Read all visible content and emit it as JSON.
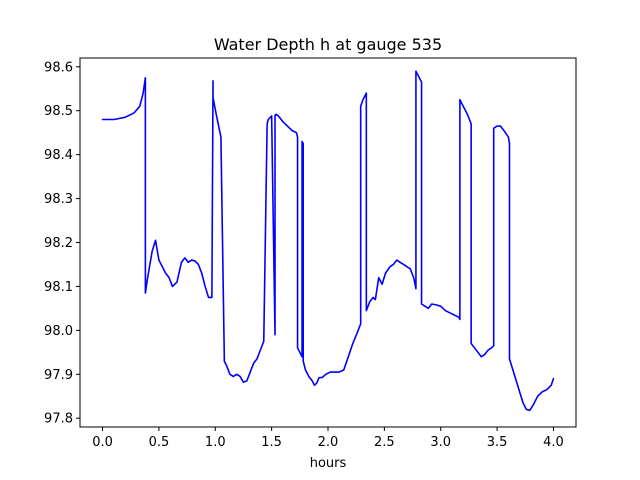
{
  "chart_data": {
    "type": "line",
    "title": "Water Depth h at gauge 535",
    "xlabel": "hours",
    "ylabel": "",
    "xlim": [
      -0.2,
      4.2
    ],
    "ylim": [
      97.78,
      98.62
    ],
    "xticks": [
      0.0,
      0.5,
      1.0,
      1.5,
      2.0,
      2.5,
      3.0,
      3.5,
      4.0
    ],
    "xtick_labels": [
      "0.0",
      "0.5",
      "1.0",
      "1.5",
      "2.0",
      "2.5",
      "3.0",
      "3.5",
      "4.0"
    ],
    "yticks": [
      97.8,
      97.9,
      98.0,
      98.1,
      98.2,
      98.3,
      98.4,
      98.5,
      98.6
    ],
    "ytick_labels": [
      "97.8",
      "97.9",
      "98.0",
      "98.1",
      "98.2",
      "98.3",
      "98.4",
      "98.5",
      "98.6"
    ],
    "grid": false,
    "legend": "none",
    "series": [
      {
        "color": "#0000ff",
        "x": [
          0.0,
          0.1,
          0.2,
          0.28,
          0.33,
          0.36,
          0.38,
          0.38,
          0.4,
          0.44,
          0.47,
          0.5,
          0.53,
          0.56,
          0.59,
          0.62,
          0.66,
          0.7,
          0.73,
          0.76,
          0.79,
          0.82,
          0.85,
          0.88,
          0.91,
          0.94,
          0.97,
          0.98,
          0.98,
          1.01,
          1.05,
          1.08,
          1.08,
          1.1,
          1.13,
          1.16,
          1.19,
          1.22,
          1.25,
          1.28,
          1.31,
          1.34,
          1.37,
          1.4,
          1.43,
          1.46,
          1.47,
          1.47,
          1.5,
          1.53,
          1.53,
          1.54,
          1.54,
          1.55,
          1.56,
          1.6,
          1.64,
          1.68,
          1.72,
          1.73,
          1.73,
          1.75,
          1.77,
          1.77,
          1.78,
          1.78,
          1.8,
          1.83,
          1.86,
          1.88,
          1.9,
          1.92,
          1.95,
          1.98,
          2.02,
          2.06,
          2.1,
          2.14,
          2.18,
          2.22,
          2.26,
          2.29,
          2.29,
          2.31,
          2.34,
          2.34,
          2.37,
          2.4,
          2.42,
          2.45,
          2.48,
          2.51,
          2.55,
          2.58,
          2.61,
          2.64,
          2.67,
          2.7,
          2.73,
          2.76,
          2.78,
          2.78,
          2.8,
          2.83,
          2.83,
          2.86,
          2.89,
          2.92,
          2.96,
          3.0,
          3.04,
          3.08,
          3.12,
          3.16,
          3.17,
          3.17,
          3.2,
          3.24,
          3.27,
          3.27,
          3.3,
          3.33,
          3.36,
          3.39,
          3.42,
          3.45,
          3.47,
          3.47,
          3.5,
          3.53,
          3.56,
          3.6,
          3.61,
          3.61,
          3.64,
          3.67,
          3.7,
          3.73,
          3.76,
          3.79,
          3.82,
          3.86,
          3.9,
          3.94,
          3.98,
          4.0
        ],
        "y": [
          98.48,
          98.48,
          98.485,
          98.495,
          98.51,
          98.54,
          98.575,
          98.085,
          98.12,
          98.18,
          98.205,
          98.16,
          98.145,
          98.13,
          98.12,
          98.1,
          98.11,
          98.155,
          98.165,
          98.155,
          98.16,
          98.158,
          98.15,
          98.13,
          98.1,
          98.075,
          98.075,
          98.568,
          98.53,
          98.49,
          98.44,
          97.94,
          97.93,
          97.92,
          97.9,
          97.895,
          97.9,
          97.895,
          97.882,
          97.885,
          97.905,
          97.925,
          97.935,
          97.955,
          97.975,
          98.47,
          98.48,
          98.48,
          98.488,
          97.99,
          98.49,
          98.49,
          98.492,
          98.49,
          98.488,
          98.475,
          98.465,
          98.455,
          98.45,
          98.44,
          97.96,
          97.95,
          97.94,
          98.43,
          98.425,
          97.93,
          97.91,
          97.895,
          97.885,
          97.875,
          97.88,
          97.892,
          97.893,
          97.9,
          97.905,
          97.905,
          97.905,
          97.91,
          97.94,
          97.97,
          97.995,
          98.015,
          98.51,
          98.525,
          98.54,
          98.045,
          98.065,
          98.075,
          98.07,
          98.12,
          98.105,
          98.13,
          98.145,
          98.15,
          98.16,
          98.155,
          98.15,
          98.145,
          98.14,
          98.12,
          98.095,
          98.59,
          98.58,
          98.565,
          98.06,
          98.055,
          98.05,
          98.06,
          98.058,
          98.055,
          98.045,
          98.04,
          98.035,
          98.03,
          98.025,
          98.525,
          98.51,
          98.49,
          98.47,
          97.97,
          97.96,
          97.95,
          97.94,
          97.945,
          97.955,
          97.96,
          97.965,
          98.46,
          98.465,
          98.465,
          98.455,
          98.44,
          98.425,
          97.935,
          97.91,
          97.885,
          97.86,
          97.835,
          97.82,
          97.818,
          97.83,
          97.85,
          97.86,
          97.865,
          97.875,
          97.89
        ]
      }
    ]
  }
}
